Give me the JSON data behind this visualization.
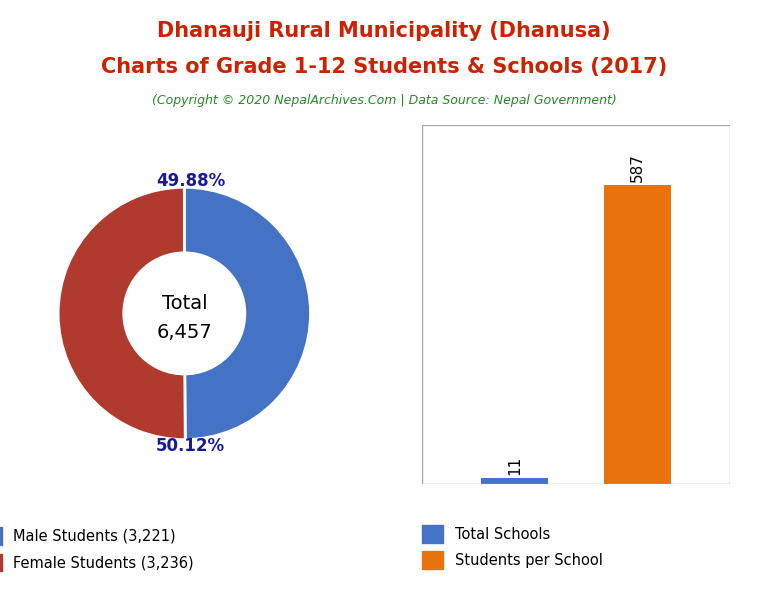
{
  "title_line1": "Dhanauji Rural Municipality (Dhanusa)",
  "title_line2": "Charts of Grade 1-12 Students & Schools (2017)",
  "subtitle": "(Copyright © 2020 NepalArchives.Com | Data Source: Nepal Government)",
  "title_color": "#cc2200",
  "subtitle_color": "#228B22",
  "male_students": 3221,
  "female_students": 3236,
  "total_students": 6457,
  "male_pct": "49.88%",
  "female_pct": "50.12%",
  "male_color": "#4472C4",
  "female_color": "#B03A2E",
  "pct_label_color": "#1a1a99",
  "total_schools": 11,
  "students_per_school": 587,
  "bar_schools_color": "#4472C4",
  "bar_students_color": "#E8720C",
  "legend_male": "Male Students (3,221)",
  "legend_female": "Female Students (3,236)",
  "legend_schools": "Total Schools",
  "legend_sps": "Students per School"
}
